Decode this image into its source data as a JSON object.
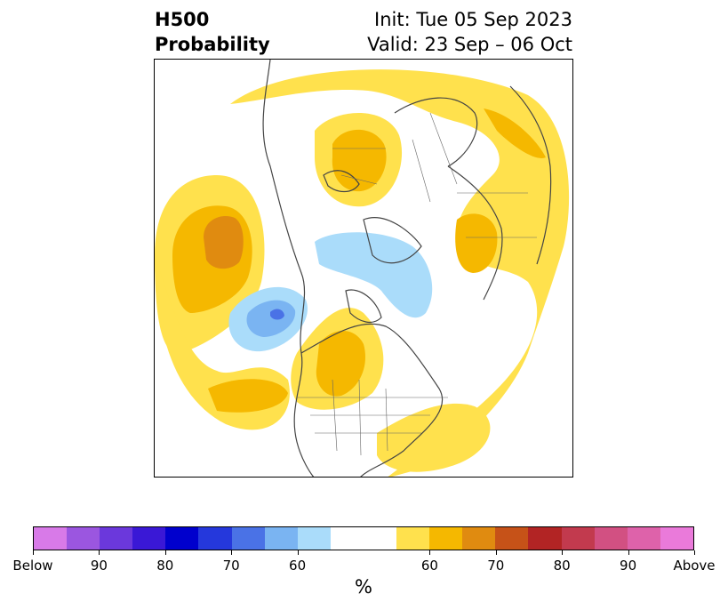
{
  "title": {
    "left_line1": "H500",
    "left_line2": "Probability",
    "right_line1": "Init: Tue 05 Sep 2023",
    "right_line2": "Valid: 23 Sep – 06 Oct"
  },
  "map": {
    "projection": "north-polar-stereographic",
    "anomaly_regions": [
      {
        "name": "north-pacific-above",
        "category": "above",
        "peak_percent": 70
      },
      {
        "name": "gulf-of-alaska-below",
        "category": "below",
        "peak_percent": 80
      },
      {
        "name": "arctic-ocean-below",
        "category": "below",
        "peak_percent": 60
      },
      {
        "name": "central-canada-above",
        "category": "above",
        "peak_percent": 70
      },
      {
        "name": "scandinavia-above",
        "category": "above",
        "peak_percent": 70
      },
      {
        "name": "western-siberia-above",
        "category": "above",
        "peak_percent": 60
      },
      {
        "name": "east-asia-above",
        "category": "above",
        "peak_percent": 70
      },
      {
        "name": "atlantic-above",
        "category": "above",
        "peak_percent": 60
      }
    ]
  },
  "colorbar": {
    "colors": [
      "#d87ae8",
      "#9b56e0",
      "#6b38dc",
      "#3a18d6",
      "#0000cd",
      "#2538dc",
      "#4a72e6",
      "#7ab4f2",
      "#aadcfa",
      "#ffffff",
      "#ffffff",
      "#ffe14d",
      "#f5b800",
      "#e08b10",
      "#c65218",
      "#b22424",
      "#c23a4e",
      "#d25082",
      "#de62aa",
      "#ea7ada"
    ],
    "tick_labels": [
      "Below",
      "90",
      "80",
      "70",
      "60",
      "60",
      "70",
      "80",
      "90",
      "Above"
    ],
    "unit": "%"
  }
}
